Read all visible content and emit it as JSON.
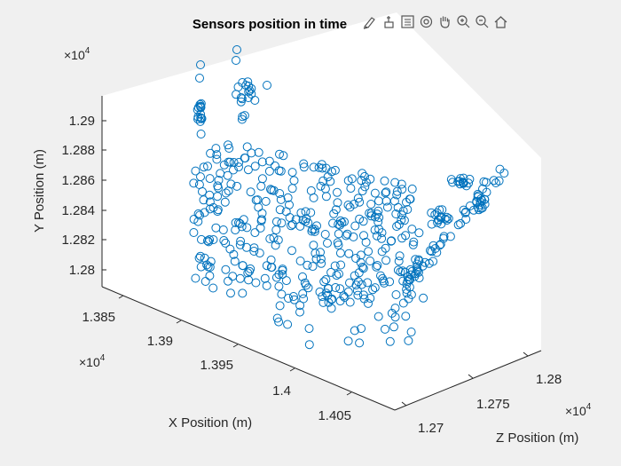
{
  "toolbar": {
    "icons": [
      "brush-icon",
      "data-tips-icon",
      "legend-icon",
      "rotate-3d-icon",
      "pan-hand-icon",
      "zoom-in-icon",
      "zoom-out-icon",
      "home-icon"
    ]
  },
  "chart_data": {
    "type": "scatter",
    "title": "Sensors position in time",
    "xlabel": "X Position (m)",
    "ylabel": "Y Position (m)",
    "zlabel": "Z Position (m)",
    "x_ticks": [
      "1.385",
      "1.39",
      "1.395",
      "1.4",
      "1.405"
    ],
    "y_ticks": [
      "1.28",
      "1.282",
      "1.284",
      "1.286",
      "1.288",
      "1.29"
    ],
    "z_ticks": [
      "1.27",
      "1.275",
      "1.28"
    ],
    "x_exponent": "×10",
    "y_exponent": "×10",
    "z_exponent": "×10",
    "exponent_power": "4",
    "xlim": [
      13840,
      14075
    ],
    "ylim": [
      12790,
      12925
    ],
    "zlim": [
      12680,
      12835
    ],
    "marker": "open-circle",
    "color": "#0072bd",
    "grid": false,
    "box": "back-planes"
  }
}
